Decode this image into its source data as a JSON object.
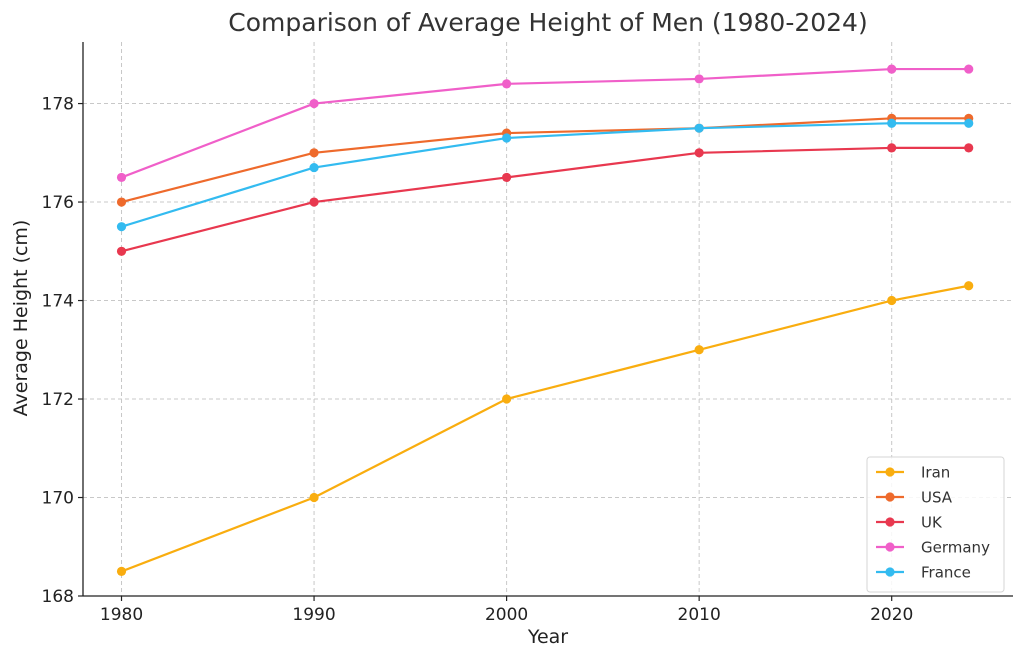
{
  "chart_data": {
    "type": "line",
    "title": "Comparison of Average Height of Men (1980-2024)",
    "xlabel": "Year",
    "ylabel": "Average Height (cm)",
    "x": [
      1980,
      1990,
      2000,
      2010,
      2020,
      2024
    ],
    "xticks": [
      1980,
      1990,
      2000,
      2010,
      2020
    ],
    "yticks": [
      168,
      170,
      172,
      174,
      176,
      178
    ],
    "xlim": [
      1978,
      2026.3
    ],
    "ylim": [
      168,
      179.25
    ],
    "grid": true,
    "legend_position": "lower-right",
    "series": [
      {
        "name": "Iran",
        "color": "#f9ad0f",
        "values": [
          168.5,
          170.0,
          172.0,
          173.0,
          174.0,
          174.3
        ]
      },
      {
        "name": "USA",
        "color": "#ee6a2c",
        "values": [
          176.0,
          177.0,
          177.4,
          177.5,
          177.7,
          177.7
        ]
      },
      {
        "name": "UK",
        "color": "#e8384f",
        "values": [
          175.0,
          176.0,
          176.5,
          177.0,
          177.1,
          177.1
        ]
      },
      {
        "name": "Germany",
        "color": "#f05fc9",
        "values": [
          176.5,
          178.0,
          178.4,
          178.5,
          178.7,
          178.7
        ]
      },
      {
        "name": "France",
        "color": "#33bbf0",
        "values": [
          175.5,
          176.7,
          177.3,
          177.5,
          177.6,
          177.6
        ]
      }
    ]
  }
}
